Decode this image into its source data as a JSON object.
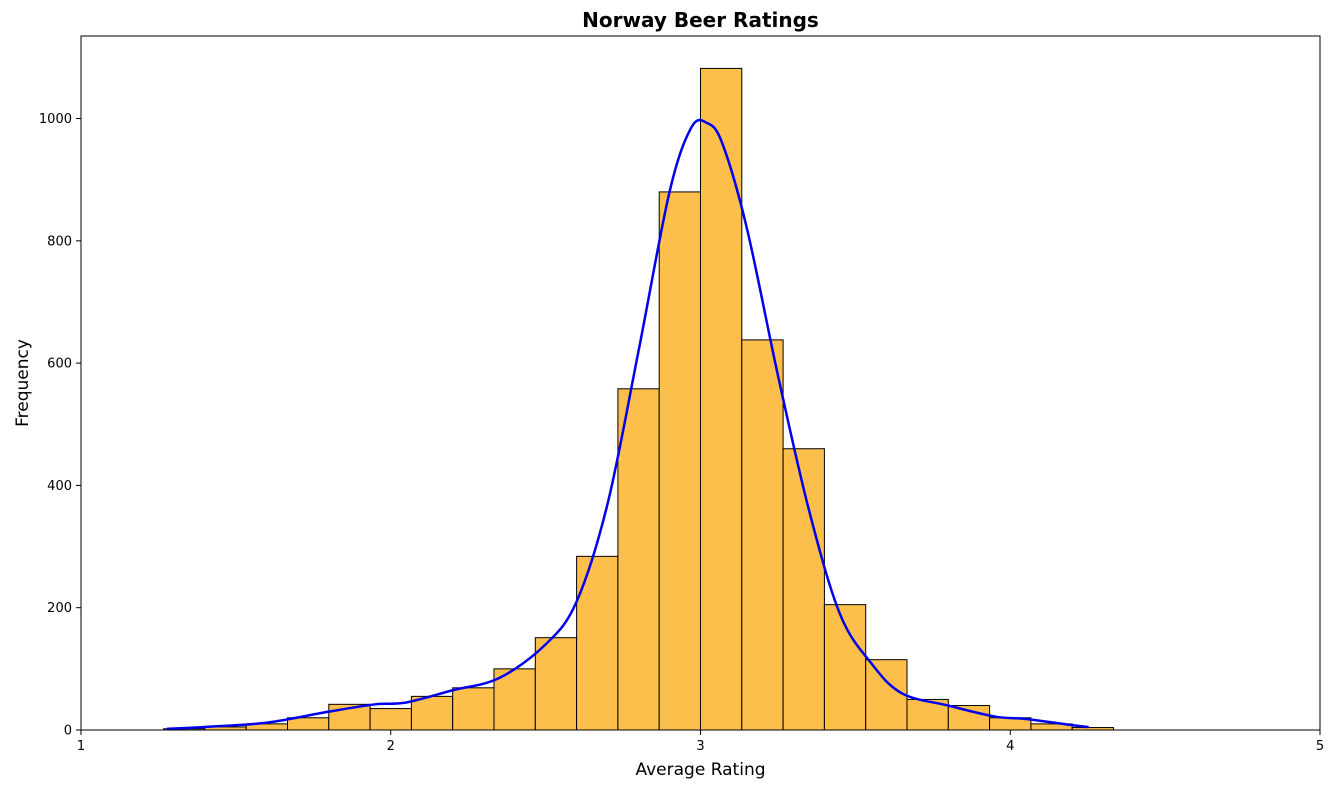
{
  "chart_data": {
    "type": "bar",
    "title": "Norway Beer Ratings",
    "xlabel": "Average Rating",
    "ylabel": "Frequency",
    "xlim": [
      1,
      5
    ],
    "ylim": [
      0,
      1135
    ],
    "xticks": [
      1,
      2,
      3,
      4,
      5
    ],
    "yticks": [
      0,
      200,
      400,
      600,
      800,
      1000
    ],
    "grid": false,
    "legend": "none",
    "colors": {
      "bar_fill": "#FDBF4C",
      "bar_edge": "#000000",
      "kde": "#0000EE"
    },
    "histogram": {
      "bin_edges": [
        1.2667,
        1.4,
        1.5333,
        1.6667,
        1.8,
        1.9333,
        2.0667,
        2.2,
        2.3333,
        2.4667,
        2.6,
        2.7333,
        2.8667,
        3.0,
        3.1333,
        3.2667,
        3.4,
        3.5333,
        3.6667,
        3.8,
        3.9333,
        4.0667,
        4.2,
        4.3333
      ],
      "counts": [
        2,
        5,
        10,
        20,
        42,
        35,
        55,
        69,
        100,
        151,
        284,
        558,
        880,
        1082,
        638,
        460,
        205,
        115,
        50,
        40,
        20,
        10,
        4
      ]
    },
    "kde": {
      "x": [
        1.28,
        1.4,
        1.6,
        1.8,
        1.95,
        2.05,
        2.2,
        2.35,
        2.5,
        2.6,
        2.7,
        2.8,
        2.9,
        2.97,
        3.02,
        3.07,
        3.15,
        3.25,
        3.35,
        3.45,
        3.55,
        3.65,
        3.8,
        3.95,
        4.05,
        4.2,
        4.25
      ],
      "y": [
        2,
        5,
        12,
        30,
        42,
        45,
        65,
        85,
        140,
        210,
        370,
        620,
        880,
        985,
        993,
        960,
        820,
        580,
        360,
        190,
        110,
        60,
        40,
        22,
        18,
        8,
        5
      ]
    }
  }
}
